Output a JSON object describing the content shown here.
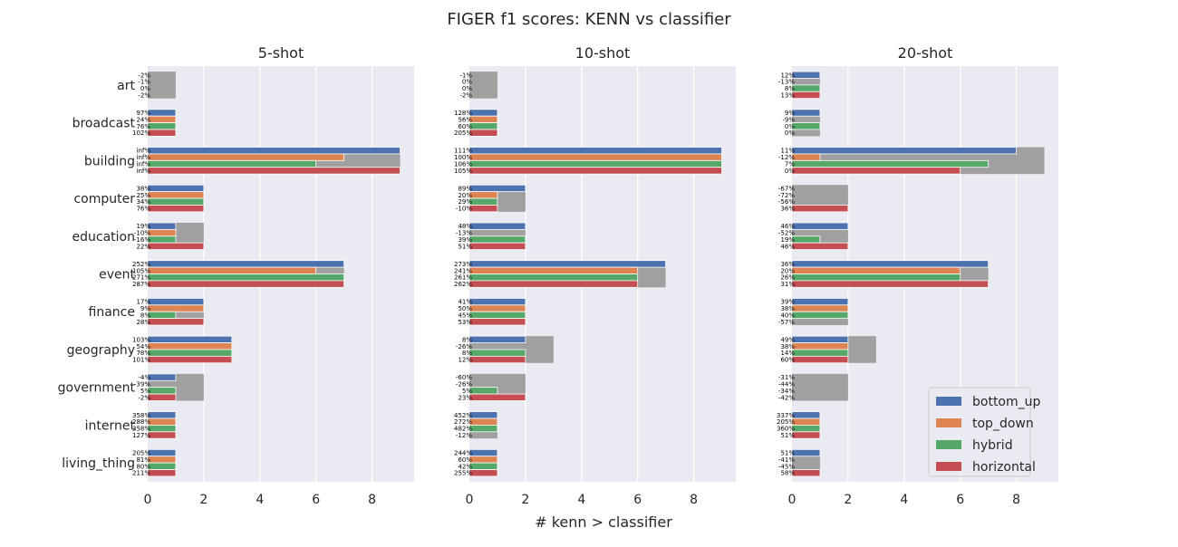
{
  "chart_data": {
    "type": "bar",
    "orientation": "horizontal",
    "title": "FIGER f1 scores: KENN vs classifier",
    "xlabel": "# kenn > classifier",
    "xlim": [
      0,
      9.5
    ],
    "xticks": [
      "0",
      "2",
      "4",
      "6",
      "8"
    ],
    "grid": true,
    "legend_position": "bottom-right",
    "categories": [
      "art",
      "broadcast",
      "building",
      "computer",
      "education",
      "event",
      "finance",
      "geography",
      "government",
      "internet",
      "living_thing"
    ],
    "legend": [
      {
        "name": "bottom_up",
        "color": "#4c72b0"
      },
      {
        "name": "top_down",
        "color": "#dd8452"
      },
      {
        "name": "hybrid",
        "color": "#55a868"
      },
      {
        "name": "horizontal",
        "color": "#c44e52"
      }
    ],
    "total_color": "#a0a0a0",
    "panels": [
      {
        "title": "5-shot",
        "totals": [
          1,
          1,
          9,
          2,
          2,
          7,
          2,
          3,
          2,
          1,
          1
        ],
        "series": [
          {
            "name": "bottom_up",
            "values": [
              0,
              1,
              9,
              2,
              1,
              7,
              2,
              3,
              1,
              1,
              1
            ],
            "labels": [
              "-2%",
              "97%",
              "inf%",
              "38%",
              "19%",
              "252%",
              "17%",
              "103%",
              "-4%",
              "358%",
              "205%"
            ]
          },
          {
            "name": "top_down",
            "values": [
              0,
              1,
              7,
              2,
              1,
              6,
              2,
              3,
              0,
              1,
              1
            ],
            "labels": [
              "-1%",
              "24%",
              "inf%",
              "25%",
              "-10%",
              "105%",
              "9%",
              "54%",
              "-39%",
              "288%",
              "81%"
            ]
          },
          {
            "name": "hybrid",
            "values": [
              0,
              1,
              6,
              2,
              1,
              7,
              1,
              3,
              1,
              1,
              1
            ],
            "labels": [
              "0%",
              "76%",
              "inf%",
              "34%",
              "-16%",
              "271%",
              "8%",
              "78%",
              "5%",
              "358%",
              "80%"
            ]
          },
          {
            "name": "horizontal",
            "values": [
              0,
              1,
              9,
              2,
              2,
              7,
              2,
              3,
              1,
              1,
              1
            ],
            "labels": [
              "-2%",
              "102%",
              "inf%",
              "76%",
              "22%",
              "287%",
              "28%",
              "101%",
              "-2%",
              "127%",
              "211%"
            ]
          }
        ]
      },
      {
        "title": "10-shot",
        "totals": [
          1,
          1,
          9,
          2,
          2,
          7,
          2,
          3,
          2,
          1,
          1
        ],
        "series": [
          {
            "name": "bottom_up",
            "values": [
              0,
              1,
              9,
              2,
              2,
              7,
              2,
              2,
              0,
              1,
              1
            ],
            "labels": [
              "-1%",
              "128%",
              "111%",
              "89%",
              "48%",
              "273%",
              "41%",
              "8%",
              "-60%",
              "452%",
              "244%"
            ]
          },
          {
            "name": "top_down",
            "values": [
              0,
              1,
              9,
              1,
              0,
              6,
              2,
              0,
              0,
              1,
              1
            ],
            "labels": [
              "0%",
              "56%",
              "100%",
              "20%",
              "-13%",
              "241%",
              "50%",
              "-26%",
              "-26%",
              "272%",
              "60%"
            ]
          },
          {
            "name": "hybrid",
            "values": [
              0,
              1,
              9,
              1,
              2,
              6,
              2,
              2,
              1,
              1,
              1
            ],
            "labels": [
              "0%",
              "60%",
              "106%",
              "29%",
              "39%",
              "261%",
              "45%",
              "8%",
              "5%",
              "482%",
              "42%"
            ]
          },
          {
            "name": "horizontal",
            "values": [
              0,
              1,
              9,
              1,
              2,
              6,
              2,
              2,
              2,
              0,
              1
            ],
            "labels": [
              "-2%",
              "205%",
              "105%",
              "-10%",
              "51%",
              "262%",
              "53%",
              "12%",
              "23%",
              "-12%",
              "255%"
            ]
          }
        ]
      },
      {
        "title": "20-shot",
        "totals": [
          1,
          1,
          9,
          2,
          2,
          7,
          2,
          3,
          2,
          1,
          1
        ],
        "series": [
          {
            "name": "bottom_up",
            "values": [
              1,
              1,
              8,
              0,
              2,
              7,
              2,
              2,
              0,
              1,
              1
            ],
            "labels": [
              "12%",
              "9%",
              "11%",
              "-67%",
              "46%",
              "36%",
              "39%",
              "49%",
              "-31%",
              "337%",
              "51%"
            ]
          },
          {
            "name": "top_down",
            "values": [
              0,
              0,
              1,
              0,
              0,
              6,
              2,
              2,
              0,
              1,
              0
            ],
            "labels": [
              "-13%",
              "-9%",
              "-12%",
              "-72%",
              "-52%",
              "20%",
              "38%",
              "38%",
              "-44%",
              "205%",
              "-41%"
            ]
          },
          {
            "name": "hybrid",
            "values": [
              1,
              1,
              7,
              0,
              1,
              6,
              2,
              2,
              0,
              1,
              0
            ],
            "labels": [
              "8%",
              "0%",
              "7%",
              "-56%",
              "19%",
              "26%",
              "40%",
              "14%",
              "-34%",
              "360%",
              "-45%"
            ]
          },
          {
            "name": "horizontal",
            "values": [
              1,
              0,
              6,
              2,
              2,
              7,
              0,
              2,
              0,
              1,
              1
            ],
            "labels": [
              "13%",
              "0%",
              "0%",
              "36%",
              "46%",
              "31%",
              "-57%",
              "60%",
              "-42%",
              "51%",
              "58%"
            ]
          }
        ]
      }
    ]
  }
}
